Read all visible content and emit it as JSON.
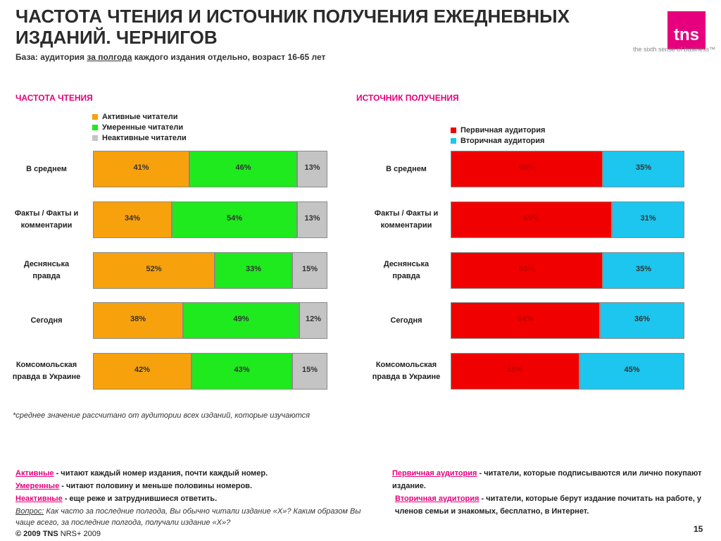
{
  "header": {
    "title": "ЧАСТОТА ЧТЕНИЯ И ИСТОЧНИК ПОЛУЧЕНИЯ ЕЖЕДНЕВНЫХ ИЗДАНИЙ. ЧЕРНИГОВ",
    "logo": "tns",
    "tagline": "the sixth sense of business™",
    "base_prefix": "База: аудитория ",
    "base_underlined": "за полгода",
    "base_suffix": " каждого издания отдельно, возраст 16-65 лет"
  },
  "chart_data": [
    {
      "type": "bar",
      "stacked": true,
      "orientation": "horizontal",
      "title": "ЧАСТОТА ЧТЕНИЯ",
      "categories": [
        "В среднем",
        "Факты / Факты и комментарии",
        "Деснянська правда",
        "Сегодня",
        "Комсомольская правда в Украине"
      ],
      "series": [
        {
          "name": "Активные читатели",
          "color": "#f7a10c",
          "values": [
            41,
            34,
            52,
            38,
            42
          ]
        },
        {
          "name": "Умеренные читатели",
          "color": "#1eea1e",
          "values": [
            46,
            54,
            33,
            49,
            43
          ]
        },
        {
          "name": "Неактивные читатели",
          "color": "#c4c4c4",
          "values": [
            13,
            13,
            15,
            12,
            15
          ]
        }
      ],
      "value_suffix": "%"
    },
    {
      "type": "bar",
      "stacked": true,
      "orientation": "horizontal",
      "title": "ИСТОЧНИК ПОЛУЧЕНИЯ",
      "categories": [
        "В среднем",
        "Факты / Факты и комментарии",
        "Деснянська правда",
        "Сегодня",
        "Комсомольская правда в Украине"
      ],
      "series": [
        {
          "name": "Первичная аудитория",
          "color": "#f10000",
          "values": [
            65,
            69,
            65,
            64,
            55
          ]
        },
        {
          "name": "Вторичная аудитория",
          "color": "#1cc6ee",
          "values": [
            35,
            31,
            35,
            36,
            45
          ]
        }
      ],
      "value_suffix": "%"
    }
  ],
  "category_labels": [
    "В среднем",
    "Факты / Факты и\nкомментарии",
    "Деснянська\nправда",
    "Сегодня",
    "Комсомольская\nправда в Украине"
  ],
  "footnote": "*среднее значение рассчитано от аудитории всех изданий, которые изучаются",
  "definitions_left": [
    {
      "term": "Активные",
      "text": " - читают каждый номер издания, почти каждый номер."
    },
    {
      "term": "Умеренные",
      "text": " - читают половину и меньше  половины номеров."
    },
    {
      "term": "Неактивные",
      "text": " - еще реже и затруднившиеся ответить."
    }
  ],
  "definitions_right": [
    {
      "term": "Первичная аудитория",
      "text": " - читатели, которые подписываются или лично покупают издание."
    },
    {
      "term": "Вторичная аудитория",
      "text": " - читатели, которые берут издание почитать на работе, у членов семьи и знакомых, бесплатно, в Интернет."
    }
  ],
  "question_label": "Вопрос:",
  "question_text": " Как часто за последние полгода, Вы обычно читали издание «Х»? Каким образом Вы чаще всего, за последние полгода, получали издание «Х»?",
  "copyright_bold": "© 2009 TNS",
  "copyright_rest": "  NRS+ 2009",
  "page_number": "15"
}
